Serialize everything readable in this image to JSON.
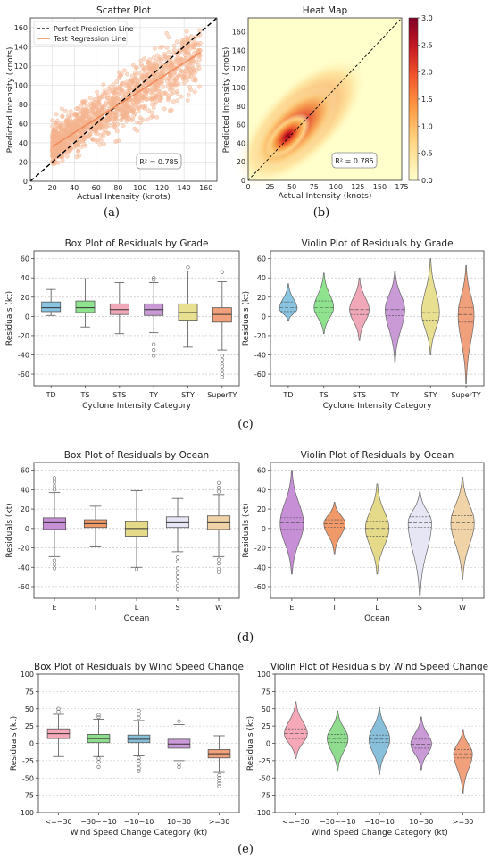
{
  "captions": {
    "a": "(a)",
    "b": "(b)",
    "c": "(c)",
    "d": "(d)",
    "e": "(e)"
  },
  "colors": {
    "scatter_point": "#f5b48f",
    "regression_line": "#f08a5a",
    "grade": [
      "#89c4e0",
      "#8fe38f",
      "#f0a8b8",
      "#c99ad6",
      "#e8e090",
      "#f0a07a"
    ],
    "ocean": [
      "#c68fd6",
      "#f09a6a",
      "#e5d98a",
      "#e6e6f5",
      "#f0d3a6"
    ],
    "wind": [
      "#f5a8b8",
      "#8fdc8f",
      "#88c0dc",
      "#c99ad6",
      "#f0a07a"
    ]
  },
  "chart_data": [
    {
      "id": "a",
      "type": "scatter",
      "title": "Scatter Plot",
      "xlabel": "Actual Intensity (knots)",
      "ylabel": "Predicted Intensity (knots)",
      "xlim": [
        0,
        170
      ],
      "ylim": [
        0,
        170
      ],
      "xticks": [
        0,
        20,
        40,
        60,
        80,
        100,
        120,
        140,
        160
      ],
      "yticks": [
        0,
        20,
        40,
        60,
        80,
        100,
        120,
        140,
        160
      ],
      "grid": true,
      "legend": {
        "position": "top-left",
        "entries": [
          "Perfect Prediction Line",
          "Test Regression Line"
        ]
      },
      "series": [
        {
          "name": "Perfect Prediction Line",
          "kind": "line",
          "style": "dashed",
          "x": [
            0,
            170
          ],
          "y": [
            0,
            170
          ]
        },
        {
          "name": "Test Regression Line",
          "kind": "line",
          "x": [
            20,
            155
          ],
          "y": [
            36,
            134
          ]
        }
      ],
      "annotation": "R² = 0.785"
    },
    {
      "id": "b",
      "type": "heatmap",
      "title": "Heat Map",
      "xlabel": "Actual Intensity (knots)",
      "ylabel": "Predicted Intensity (knots)",
      "xlim": [
        0,
        175
      ],
      "ylim": [
        0,
        175
      ],
      "xticks": [
        0,
        25,
        50,
        75,
        100,
        125,
        150,
        175
      ],
      "yticks": [
        0,
        20,
        40,
        60,
        80,
        100,
        120,
        140,
        160
      ],
      "colorbar": {
        "min": 0,
        "max": 3.0,
        "ticks": [
          "0.0",
          "0.5",
          "1.0",
          "1.5",
          "2.0",
          "2.5",
          "3.0"
        ]
      },
      "peak": {
        "x": 45,
        "y": 48
      },
      "annotation": "R² = 0.785"
    },
    {
      "id": "c1",
      "type": "box",
      "title": "Box Plot of Residuals by Grade",
      "xlabel": "Cyclone Intensity Category",
      "ylabel": "Residuals (kt)",
      "categories": [
        "TD",
        "TS",
        "STS",
        "TY",
        "STY",
        "SuperTY"
      ],
      "ylim": [
        -72,
        68
      ],
      "yticks": [
        60,
        40,
        20,
        0,
        -20,
        -40,
        -60
      ],
      "boxes": [
        {
          "q1": 5,
          "median": 9,
          "q3": 15,
          "low": 1,
          "high": 28,
          "outliers": []
        },
        {
          "q1": 4,
          "median": 9,
          "q3": 16,
          "low": -11,
          "high": 39,
          "outliers": []
        },
        {
          "q1": 2,
          "median": 7,
          "q3": 13,
          "low": -18,
          "high": 35,
          "outliers": []
        },
        {
          "q1": 1,
          "median": 7,
          "q3": 13,
          "low": -17,
          "high": 35,
          "outliers": [
            -29,
            -35,
            -41,
            38,
            40
          ]
        },
        {
          "q1": -4,
          "median": 4,
          "q3": 13,
          "low": -32,
          "high": 47,
          "outliers": [
            51
          ]
        },
        {
          "q1": -6,
          "median": 2,
          "q3": 9,
          "low": -35,
          "high": 36,
          "outliers": [
            -41,
            -45,
            -49,
            -52,
            -56,
            -60,
            -63,
            46
          ]
        }
      ]
    },
    {
      "id": "c2",
      "type": "violin",
      "title": "Violin Plot of Residuals by Grade",
      "xlabel": "Cyclone Intensity Category",
      "ylabel": "Residuals (kt)",
      "categories": [
        "TD",
        "TS",
        "STS",
        "TY",
        "STY",
        "SuperTY"
      ],
      "ylim": [
        -72,
        68
      ],
      "yticks": [
        60,
        40,
        20,
        0,
        -20,
        -40,
        -60
      ],
      "violins": [
        {
          "min": -5,
          "max": 34,
          "mode": 8,
          "q1": 5,
          "median": 9,
          "q3": 15,
          "width": 0.5
        },
        {
          "min": -18,
          "max": 45,
          "mode": 9,
          "q1": 4,
          "median": 9,
          "q3": 16,
          "width": 0.55
        },
        {
          "min": -25,
          "max": 40,
          "mode": 7,
          "q1": 2,
          "median": 7,
          "q3": 13,
          "width": 0.55
        },
        {
          "min": -47,
          "max": 47,
          "mode": 7,
          "q1": 1,
          "median": 7,
          "q3": 13,
          "width": 0.55
        },
        {
          "min": -40,
          "max": 60,
          "mode": 4,
          "q1": -4,
          "median": 4,
          "q3": 13,
          "width": 0.5
        },
        {
          "min": -70,
          "max": 53,
          "mode": 2,
          "q1": -6,
          "median": 2,
          "q3": 9,
          "width": 0.45
        }
      ]
    },
    {
      "id": "d1",
      "type": "box",
      "title": "Box Plot of Residuals by Ocean",
      "xlabel": "Ocean",
      "ylabel": "Residuals (kt)",
      "categories": [
        "E",
        "I",
        "L",
        "S",
        "W"
      ],
      "ylim": [
        -72,
        68
      ],
      "yticks": [
        60,
        40,
        20,
        0,
        -20,
        -40,
        -60
      ],
      "boxes": [
        {
          "q1": -1,
          "median": 6,
          "q3": 11,
          "low": -29,
          "high": 37,
          "outliers": [
            -33,
            -37,
            -41,
            40,
            44,
            48,
            52
          ]
        },
        {
          "q1": 1,
          "median": 5,
          "q3": 9,
          "low": -19,
          "high": 23,
          "outliers": []
        },
        {
          "q1": -8,
          "median": 0,
          "q3": 7,
          "low": -40,
          "high": 39,
          "outliers": [
            -42
          ]
        },
        {
          "q1": 1,
          "median": 6,
          "q3": 12,
          "low": -24,
          "high": 31,
          "outliers": [
            -30,
            -34,
            -41,
            -46,
            -50,
            -54,
            -59,
            -63
          ]
        },
        {
          "q1": -1,
          "median": 6,
          "q3": 13,
          "low": -29,
          "high": 35,
          "outliers": [
            -32,
            -36,
            -42,
            -45,
            38,
            42,
            47
          ]
        }
      ]
    },
    {
      "id": "d2",
      "type": "violin",
      "title": "Violin Plot of Residuals by Ocean",
      "xlabel": "Ocean",
      "ylabel": "Residuals (kt)",
      "categories": [
        "E",
        "I",
        "L",
        "S",
        "W"
      ],
      "ylim": [
        -72,
        68
      ],
      "yticks": [
        60,
        40,
        20,
        0,
        -20,
        -40,
        -60
      ],
      "violins": [
        {
          "min": -47,
          "max": 60,
          "mode": 5,
          "q1": -1,
          "median": 6,
          "q3": 11,
          "width": 0.55
        },
        {
          "min": -26,
          "max": 27,
          "mode": 5,
          "q1": 1,
          "median": 5,
          "q3": 9,
          "width": 0.5
        },
        {
          "min": -47,
          "max": 46,
          "mode": 0,
          "q1": -8,
          "median": 0,
          "q3": 7,
          "width": 0.55
        },
        {
          "min": -70,
          "max": 38,
          "mode": 6,
          "q1": 1,
          "median": 6,
          "q3": 12,
          "width": 0.55
        },
        {
          "min": -52,
          "max": 53,
          "mode": 6,
          "q1": -1,
          "median": 6,
          "q3": 13,
          "width": 0.55
        }
      ]
    },
    {
      "id": "e1",
      "type": "box",
      "title": "Box Plot of Residuals by Wind Speed Change",
      "xlabel": "Wind Speed Change Category (kt)",
      "ylabel": "Residuals (kt)",
      "categories": [
        "<=−30",
        "−30~−10",
        "−10~10",
        "10~30",
        ">=30"
      ],
      "ylim": [
        -100,
        100
      ],
      "yticks": [
        100,
        75,
        50,
        25,
        0,
        -25,
        -50,
        -75,
        -100
      ],
      "boxes": [
        {
          "q1": 7,
          "median": 14,
          "q3": 21,
          "low": -19,
          "high": 42,
          "outliers": [
            46,
            50
          ]
        },
        {
          "q1": 1,
          "median": 7,
          "q3": 13,
          "low": -19,
          "high": 35,
          "outliers": [
            -22,
            -27,
            -34,
            38,
            41
          ]
        },
        {
          "q1": 1,
          "median": 6,
          "q3": 12,
          "low": -18,
          "high": 33,
          "outliers": [
            -21,
            -25,
            -30,
            -36,
            -40,
            37,
            42,
            47
          ]
        },
        {
          "q1": -7,
          "median": -1,
          "q3": 6,
          "low": -25,
          "high": 27,
          "outliers": [
            -30,
            -34,
            32
          ]
        },
        {
          "q1": -21,
          "median": -15,
          "q3": -9,
          "low": -42,
          "high": 11,
          "outliers": [
            -46,
            -50,
            -54,
            -58,
            -62
          ]
        }
      ]
    },
    {
      "id": "e2",
      "type": "violin",
      "title": "Violin Plot of Residuals by Wind Speed Change",
      "xlabel": "Wind Speed Change Category (kt)",
      "ylabel": "Residuals (kt)",
      "categories": [
        "<=−30",
        "−30~−10",
        "−10~10",
        "10~30",
        ">=30"
      ],
      "ylim": [
        -100,
        100
      ],
      "yticks": [
        100,
        75,
        50,
        25,
        0,
        -25,
        -50,
        -75,
        -100
      ],
      "violins": [
        {
          "min": -22,
          "max": 60,
          "mode": 14,
          "q1": 7,
          "median": 14,
          "q3": 21,
          "width": 0.55
        },
        {
          "min": -40,
          "max": 47,
          "mode": 7,
          "q1": 1,
          "median": 7,
          "q3": 13,
          "width": 0.5
        },
        {
          "min": -45,
          "max": 52,
          "mode": 6,
          "q1": 1,
          "median": 6,
          "q3": 12,
          "width": 0.5
        },
        {
          "min": -38,
          "max": 38,
          "mode": -1,
          "q1": -7,
          "median": -1,
          "q3": 6,
          "width": 0.5
        },
        {
          "min": -72,
          "max": 20,
          "mode": -15,
          "q1": -21,
          "median": -15,
          "q3": -9,
          "width": 0.45
        }
      ]
    }
  ]
}
